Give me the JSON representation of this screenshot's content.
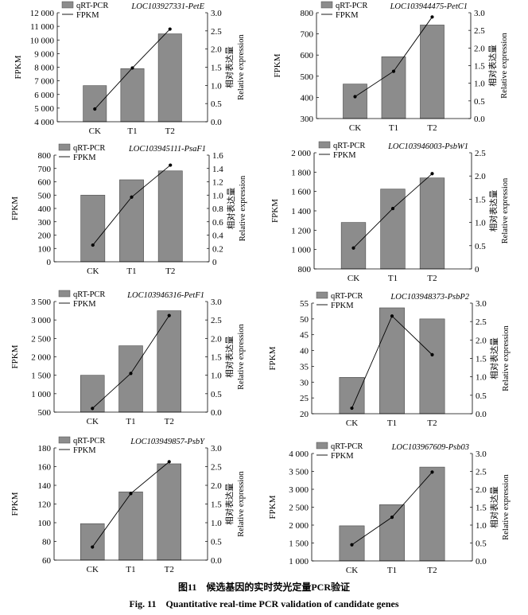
{
  "figure": {
    "caption_zh": "图11　候选基因的实时荧光定量PCR验证",
    "caption_en": "Fig. 11　Quantitative real-time PCR validation of candidate genes"
  },
  "chart_data": [
    {
      "type": "bar",
      "gene": "LOC103927331-PetE",
      "categories": [
        "CK",
        "T1",
        "T2"
      ],
      "series": [
        {
          "name": "qRT-PCR",
          "type": "bar",
          "axis": "left",
          "values": [
            6650,
            7900,
            10450
          ]
        },
        {
          "name": "FPKM",
          "type": "line",
          "axis": "right",
          "values": [
            0.35,
            1.48,
            2.55
          ]
        }
      ],
      "ylabel": "FPKM",
      "y2label": "相对表达量 Relative expression",
      "ylim": [
        4000,
        12000
      ],
      "yticks": [
        4000,
        5000,
        6000,
        7000,
        8000,
        9000,
        10000,
        11000,
        12000
      ],
      "ytick_labels": [
        "4 000",
        "5 000",
        "6 000",
        "7 000",
        "8 000",
        "9 000",
        "10 000",
        "11 000",
        "12 000"
      ],
      "y2lim": [
        0,
        3
      ],
      "y2ticks": [
        0,
        0.5,
        1,
        1.5,
        2,
        2.5,
        3
      ],
      "y2tick_labels": [
        "0.0",
        "0.5",
        "1.0",
        "1.5",
        "2.0",
        "2.5",
        "3.0"
      ]
    },
    {
      "type": "bar",
      "gene": "LOC103944475-PetC1",
      "categories": [
        "CK",
        "T1",
        "T2"
      ],
      "series": [
        {
          "name": "qRT-PCR",
          "type": "bar",
          "axis": "left",
          "values": [
            463,
            592,
            742
          ]
        },
        {
          "name": "FPKM",
          "type": "line",
          "axis": "right",
          "values": [
            0.62,
            1.34,
            2.88
          ]
        }
      ],
      "ylabel": "FPKM",
      "y2label": "相对表达量 Relative expression",
      "ylim": [
        300,
        800
      ],
      "yticks": [
        300,
        400,
        500,
        600,
        700,
        800
      ],
      "ytick_labels": [
        "300",
        "400",
        "500",
        "600",
        "700",
        "800"
      ],
      "y2lim": [
        0,
        3
      ],
      "y2ticks": [
        0,
        0.5,
        1,
        1.5,
        2,
        2.5,
        3
      ],
      "y2tick_labels": [
        "0.0",
        "0.5",
        "1.0",
        "1.5",
        "2.0",
        "2.5",
        "3.0"
      ]
    },
    {
      "type": "bar",
      "gene": "LOC103945111-PsaF1",
      "categories": [
        "CK",
        "T1",
        "T2"
      ],
      "series": [
        {
          "name": "qRT-PCR",
          "type": "bar",
          "axis": "left",
          "values": [
            500,
            615,
            682
          ]
        },
        {
          "name": "FPKM",
          "type": "line",
          "axis": "right",
          "values": [
            0.25,
            0.97,
            1.45
          ]
        }
      ],
      "ylabel": "FPKM",
      "y2label": "相对表达量 Relative expression",
      "ylim": [
        0,
        800
      ],
      "yticks": [
        0,
        100,
        200,
        300,
        400,
        500,
        600,
        700,
        800
      ],
      "ytick_labels": [
        "0",
        "100",
        "200",
        "300",
        "400",
        "500",
        "600",
        "700",
        "800"
      ],
      "y2lim": [
        0,
        1.6
      ],
      "y2ticks": [
        0,
        0.2,
        0.4,
        0.6,
        0.8,
        1.0,
        1.2,
        1.4,
        1.6
      ],
      "y2tick_labels": [
        "0",
        "0.2",
        "0.4",
        "0.6",
        "0.8",
        "1.0",
        "1.2",
        "1.4",
        "1.6"
      ]
    },
    {
      "type": "bar",
      "gene": "LOC103946003-PsbW1",
      "categories": [
        "CK",
        "T1",
        "T2"
      ],
      "series": [
        {
          "name": "qRT-PCR",
          "type": "bar",
          "axis": "left",
          "values": [
            1280,
            1625,
            1740
          ]
        },
        {
          "name": "FPKM",
          "type": "line",
          "axis": "right",
          "values": [
            0.45,
            1.3,
            2.05
          ]
        }
      ],
      "ylabel": "FPKM",
      "y2label": "相对表达量 Relative expression",
      "ylim": [
        800,
        2000
      ],
      "yticks": [
        800,
        1000,
        1200,
        1400,
        1600,
        1800,
        2000
      ],
      "ytick_labels": [
        "800",
        "1 000",
        "1 200",
        "1 400",
        "1 600",
        "1 800",
        "2 000"
      ],
      "y2lim": [
        0,
        2.5
      ],
      "y2ticks": [
        0,
        0.5,
        1,
        1.5,
        2,
        2.5
      ],
      "y2tick_labels": [
        "0",
        "0.5",
        "1.0",
        "1.5",
        "2.0",
        "2.5"
      ]
    },
    {
      "type": "bar",
      "gene": "LOC103946316-PetF1",
      "categories": [
        "CK",
        "T1",
        "T2"
      ],
      "series": [
        {
          "name": "qRT-PCR",
          "type": "bar",
          "axis": "left",
          "values": [
            1500,
            2300,
            3250
          ]
        },
        {
          "name": "FPKM",
          "type": "line",
          "axis": "right",
          "values": [
            0.1,
            1.05,
            2.62
          ]
        }
      ],
      "ylabel": "FPKM",
      "y2label": "相对表达量 Relative expression",
      "ylim": [
        500,
        3500
      ],
      "yticks": [
        500,
        1000,
        1500,
        2000,
        2500,
        3000,
        3500
      ],
      "ytick_labels": [
        "500",
        "1 000",
        "1 500",
        "2 000",
        "2 500",
        "3 000",
        "3 500"
      ],
      "y2lim": [
        0,
        3
      ],
      "y2ticks": [
        0,
        0.5,
        1,
        1.5,
        2,
        2.5,
        3
      ],
      "y2tick_labels": [
        "0.0",
        "0.5",
        "1.0",
        "1.5",
        "2.0",
        "2.5",
        "3.0"
      ]
    },
    {
      "type": "bar",
      "gene": "LOC103948373-PsbP2",
      "categories": [
        "CK",
        "T1",
        "T2"
      ],
      "series": [
        {
          "name": "qRT-PCR",
          "type": "bar",
          "axis": "left",
          "values": [
            31.5,
            53.5,
            50
          ]
        },
        {
          "name": "FPKM",
          "type": "line",
          "axis": "right",
          "values": [
            0.15,
            2.65,
            1.6
          ]
        }
      ],
      "ylabel": "FPKM",
      "y2label": "相对表达量 Relative expression",
      "ylim": [
        20,
        55
      ],
      "yticks": [
        20,
        25,
        30,
        35,
        40,
        45,
        50,
        55
      ],
      "ytick_labels": [
        "20",
        "25",
        "30",
        "35",
        "40",
        "45",
        "50",
        "55"
      ],
      "y2lim": [
        0,
        3
      ],
      "y2ticks": [
        0,
        0.5,
        1,
        1.5,
        2,
        2.5,
        3
      ],
      "y2tick_labels": [
        "0.0",
        "0.5",
        "1.0",
        "1.5",
        "2.0",
        "2.5",
        "3.0"
      ]
    },
    {
      "type": "bar",
      "gene": "LOC103949857-PsbY",
      "categories": [
        "CK",
        "T1",
        "T2"
      ],
      "series": [
        {
          "name": "qRT-PCR",
          "type": "bar",
          "axis": "left",
          "values": [
            99,
            133,
            163
          ]
        },
        {
          "name": "FPKM",
          "type": "line",
          "axis": "right",
          "values": [
            0.35,
            1.78,
            2.63
          ]
        }
      ],
      "ylabel": "FPKM",
      "y2label": "相对表达量 Relative expression",
      "ylim": [
        60,
        180
      ],
      "yticks": [
        60,
        80,
        100,
        120,
        140,
        160,
        180
      ],
      "ytick_labels": [
        "60",
        "80",
        "100",
        "120",
        "140",
        "160",
        "180"
      ],
      "y2lim": [
        0,
        3
      ],
      "y2ticks": [
        0,
        0.5,
        1,
        1.5,
        2,
        2.5,
        3
      ],
      "y2tick_labels": [
        "0.0",
        "0.5",
        "1.0",
        "1.5",
        "2.0",
        "2.5",
        "3.0"
      ]
    },
    {
      "type": "bar",
      "gene": "LOC103967609-Psb03",
      "categories": [
        "CK",
        "T1",
        "T2"
      ],
      "series": [
        {
          "name": "qRT-PCR",
          "type": "bar",
          "axis": "left",
          "values": [
            1980,
            2570,
            3620
          ]
        },
        {
          "name": "FPKM",
          "type": "line",
          "axis": "right",
          "values": [
            0.45,
            1.22,
            2.48
          ]
        }
      ],
      "ylabel": "FPKM",
      "y2label": "相对表达量 Relative expression",
      "ylim": [
        1000,
        4000
      ],
      "yticks": [
        1000,
        1500,
        2000,
        2500,
        3000,
        3500,
        4000
      ],
      "ytick_labels": [
        "1 000",
        "1 500",
        "2 000",
        "2 500",
        "3 000",
        "3 500",
        "4 000"
      ],
      "y2lim": [
        0,
        3
      ],
      "y2ticks": [
        0,
        0.5,
        1,
        1.5,
        2,
        2.5,
        3
      ],
      "y2tick_labels": [
        "0.0",
        "0.5",
        "1.0",
        "1.5",
        "2.0",
        "2.5",
        "3.0"
      ]
    }
  ]
}
